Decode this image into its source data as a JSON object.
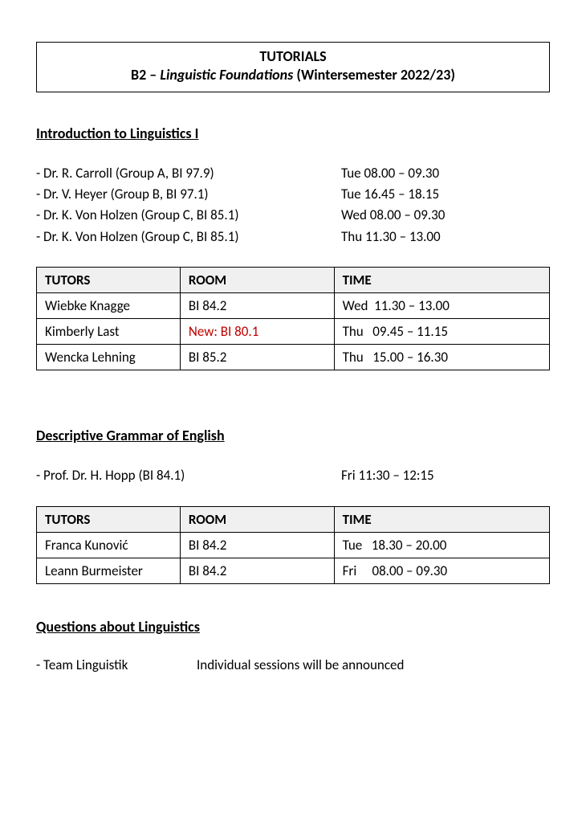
{
  "title": {
    "line1": "TUTORIALS",
    "prefix": "B2 – ",
    "italic": "Linguistic Foundations",
    "suffix": " (Wintersemester 2022/23)"
  },
  "section1": {
    "heading": "Introduction to Linguistics I",
    "lecturers": [
      {
        "left": "- Dr. R. Carroll (Group A, BI 97.9)",
        "right": "Tue 08.00 – 09.30"
      },
      {
        "left": "- Dr. V. Heyer (Group B, BI 97.1)",
        "right": "Tue 16.45 – 18.15"
      },
      {
        "left": "- Dr. K. Von Holzen (Group C, BI 85.1)",
        "right": "Wed 08.00 – 09.30"
      },
      {
        "left": "- Dr. K. Von Holzen (Group C, BI 85.1)",
        "right": "Thu 11.30 – 13.00"
      }
    ],
    "table": {
      "columns": [
        "TUTORS",
        "ROOM",
        "TIME"
      ],
      "rows": [
        {
          "tutor": "Wiebke Knagge",
          "room": "BI 84.2",
          "room_red": false,
          "time": "Wed  11.30 – 13.00"
        },
        {
          "tutor": "Kimberly Last",
          "room": "New: BI 80.1",
          "room_red": true,
          "time": "Thu   09.45 – 11.15"
        },
        {
          "tutor": "Wencka Lehning",
          "room": "BI 85.2",
          "room_red": false,
          "time": "Thu   15.00 – 16.30"
        }
      ]
    }
  },
  "section2": {
    "heading": "Descriptive Grammar of English",
    "lecturers": [
      {
        "left": "- Prof. Dr. H. Hopp (BI 84.1)",
        "right": "Fri 11:30 – 12:15"
      }
    ],
    "table": {
      "columns": [
        "TUTORS",
        "ROOM",
        "TIME"
      ],
      "rows": [
        {
          "tutor": "Franca Kunović",
          "room": "BI 84.2",
          "room_red": false,
          "time": "Tue   18.30 – 20.00"
        },
        {
          "tutor": "Leann Burmeister",
          "room": "BI 84.2",
          "room_red": false,
          "time": "Fri     08.00 – 09.30"
        }
      ]
    }
  },
  "section3": {
    "heading": "Questions about Linguistics",
    "left": "- Team Linguistik",
    "right": "Individual sessions will be announced"
  },
  "colors": {
    "text": "#000000",
    "border": "#000000",
    "header_bg": "#f0f0f0",
    "red": "#c00000",
    "page_bg": "#ffffff"
  }
}
